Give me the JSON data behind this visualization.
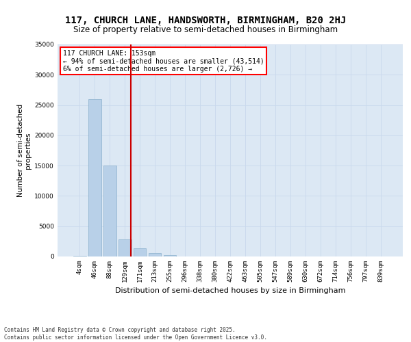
{
  "title1": "117, CHURCH LANE, HANDSWORTH, BIRMINGHAM, B20 2HJ",
  "title2": "Size of property relative to semi-detached houses in Birmingham",
  "xlabel": "Distribution of semi-detached houses by size in Birmingham",
  "ylabel": "Number of semi-detached\nproperties",
  "categories": [
    "4sqm",
    "46sqm",
    "88sqm",
    "129sqm",
    "171sqm",
    "213sqm",
    "255sqm",
    "296sqm",
    "338sqm",
    "380sqm",
    "422sqm",
    "463sqm",
    "505sqm",
    "547sqm",
    "589sqm",
    "630sqm",
    "672sqm",
    "714sqm",
    "756sqm",
    "797sqm",
    "839sqm"
  ],
  "values": [
    150,
    26000,
    15000,
    2800,
    1400,
    550,
    200,
    0,
    0,
    0,
    0,
    0,
    0,
    0,
    0,
    0,
    0,
    0,
    0,
    0,
    0
  ],
  "bar_color": "#b8d0e8",
  "bar_edge_color": "#8ab0cc",
  "grid_color": "#c8d8ec",
  "bg_color": "#dce8f4",
  "vline_color": "#cc0000",
  "annotation_text": "117 CHURCH LANE: 153sqm\n← 94% of semi-detached houses are smaller (43,514)\n6% of semi-detached houses are larger (2,726) →",
  "ylim": [
    0,
    35000
  ],
  "yticks": [
    0,
    5000,
    10000,
    15000,
    20000,
    25000,
    30000,
    35000
  ],
  "footer": "Contains HM Land Registry data © Crown copyright and database right 2025.\nContains public sector information licensed under the Open Government Licence v3.0.",
  "title_fontsize": 10,
  "subtitle_fontsize": 8.5,
  "tick_fontsize": 6.5,
  "ylabel_fontsize": 7.5,
  "xlabel_fontsize": 8,
  "footer_fontsize": 5.5,
  "annotation_fontsize": 7
}
